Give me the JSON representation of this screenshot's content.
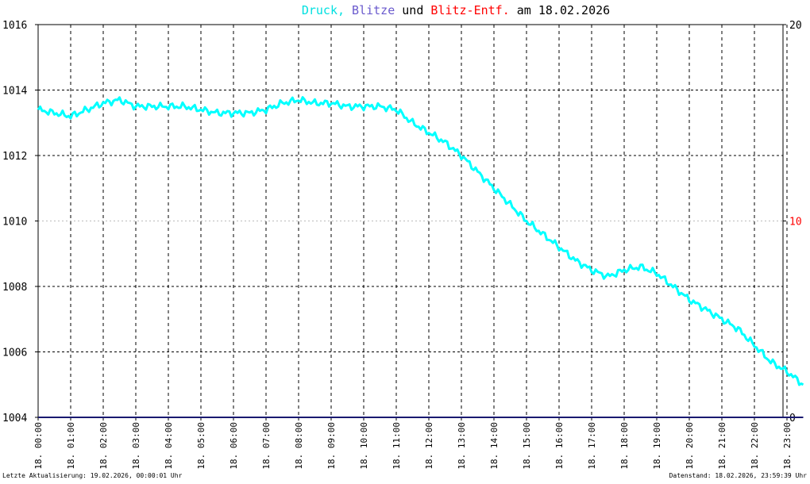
{
  "chart_data": {
    "type": "line",
    "title_parts": [
      {
        "text": "Druck,",
        "color": "#00e0e0"
      },
      {
        "text": "Blitze",
        "color": "#6a5acd"
      },
      {
        "text": "und",
        "color": "#000000"
      },
      {
        "text": "Blitz-Entf.",
        "color": "#ff0000"
      },
      {
        "text": "am 18.02.2026",
        "color": "#000000"
      }
    ],
    "x_tick_labels": [
      "18. 00:00",
      "18. 01:00",
      "18. 02:00",
      "18. 03:00",
      "18. 04:00",
      "18. 05:00",
      "18. 06:00",
      "18. 07:00",
      "18. 08:00",
      "18. 09:00",
      "18. 10:00",
      "18. 11:00",
      "18. 12:00",
      "18. 13:00",
      "18. 14:00",
      "18. 15:00",
      "18. 16:00",
      "18. 17:00",
      "18. 18:00",
      "18. 19:00",
      "18. 20:00",
      "18. 21:00",
      "18. 22:00",
      "18. 23:00"
    ],
    "x_range_hours": [
      0,
      23.5
    ],
    "y_left": {
      "range": [
        1004,
        1016
      ],
      "ticks": [
        "1004",
        "1006",
        "1008",
        "1010",
        "1012",
        "1014",
        "1016"
      ]
    },
    "y_right": {
      "range": [
        0,
        20
      ],
      "ticks": [
        "0",
        "10",
        "20"
      ],
      "color_of_10": "#ff0000"
    },
    "series": [
      {
        "color": "#00ffff",
        "points_hours": [
          [
            0,
            1013.4
          ],
          [
            0.5,
            1013.3
          ],
          [
            1,
            1013.2
          ],
          [
            1.5,
            1013.4
          ],
          [
            2,
            1013.6
          ],
          [
            2.5,
            1013.7
          ],
          [
            3,
            1013.5
          ],
          [
            3.5,
            1013.5
          ],
          [
            4,
            1013.5
          ],
          [
            4.5,
            1013.5
          ],
          [
            5,
            1013.4
          ],
          [
            5.5,
            1013.3
          ],
          [
            6,
            1013.3
          ],
          [
            6.5,
            1013.3
          ],
          [
            7,
            1013.4
          ],
          [
            7.5,
            1013.6
          ],
          [
            8,
            1013.7
          ],
          [
            8.5,
            1013.6
          ],
          [
            9,
            1013.6
          ],
          [
            9.5,
            1013.5
          ],
          [
            10,
            1013.5
          ],
          [
            10.5,
            1013.5
          ],
          [
            11,
            1013.4
          ],
          [
            11.5,
            1013.0
          ],
          [
            12,
            1012.7
          ],
          [
            12.5,
            1012.4
          ],
          [
            13,
            1012.0
          ],
          [
            13.5,
            1011.5
          ],
          [
            14,
            1011.0
          ],
          [
            14.5,
            1010.5
          ],
          [
            15,
            1010.0
          ],
          [
            15.5,
            1009.6
          ],
          [
            16,
            1009.2
          ],
          [
            16.5,
            1008.8
          ],
          [
            17,
            1008.5
          ],
          [
            17.5,
            1008.3
          ],
          [
            18,
            1008.5
          ],
          [
            18.5,
            1008.6
          ],
          [
            19,
            1008.4
          ],
          [
            19.5,
            1008.0
          ],
          [
            20,
            1007.6
          ],
          [
            20.5,
            1007.3
          ],
          [
            21,
            1007.0
          ],
          [
            21.5,
            1006.7
          ],
          [
            22,
            1006.2
          ],
          [
            22.5,
            1005.7
          ],
          [
            23,
            1005.4
          ],
          [
            23.5,
            1005.0
          ]
        ]
      },
      {
        "color": "#191970",
        "points_hours": [
          [
            0,
            0
          ],
          [
            23.5,
            0
          ]
        ]
      }
    ]
  },
  "footer": {
    "left": "Letzte Aktualisierung: 19.02.2026, 00:00:01 Uhr",
    "right": "Datenstand: 18.02.2026, 23:59:39 Uhr"
  }
}
